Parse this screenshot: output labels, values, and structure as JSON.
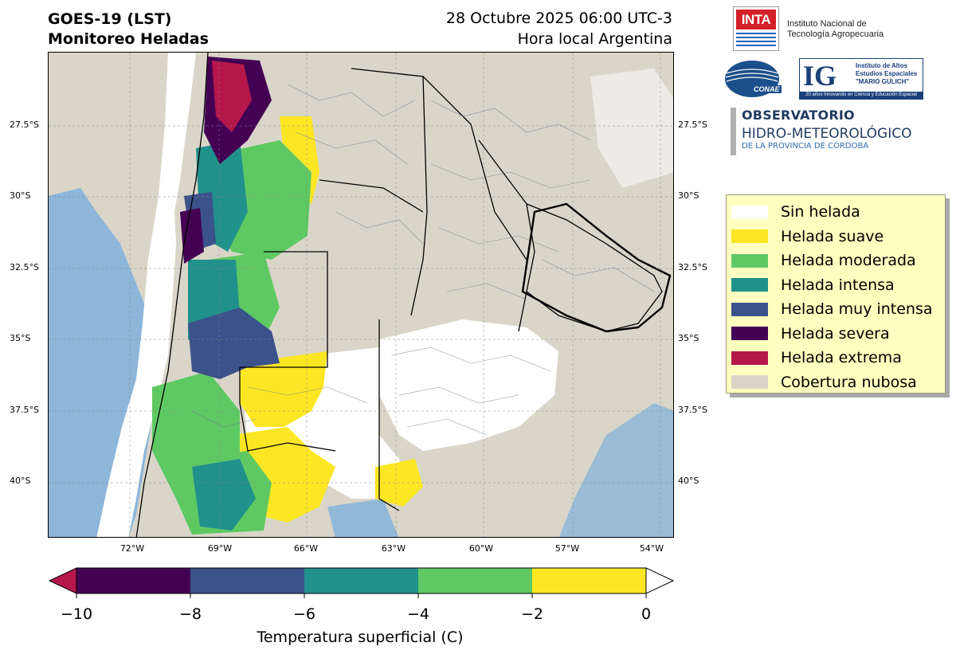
{
  "header": {
    "title_line1": "GOES-19 (LST)",
    "title_line2": "Monitoreo Heladas",
    "datetime": "28 Octubre 2025 06:00 UTC-3",
    "local_note": "Hora local Argentina"
  },
  "logos": {
    "inta": {
      "mark": "INTA",
      "line1": "Instituto Nacional de",
      "line2": "Tecnología Agropecuaria"
    },
    "conae": {
      "mark": "CONAE"
    },
    "ig": {
      "mark": "IG",
      "line1": "Instituto de Altos",
      "line2": "Estudios Espaciales",
      "line3": "\"MARIO GULICH\"",
      "band": "20 años Innovando en Ciencia y Educación Espacial"
    },
    "observatorio": {
      "line1": "OBSERVATORIO",
      "line2": "HIDRO-METEOROLÓGICO",
      "line3": "DE LA PROVINCIA DE CÓRDOBA"
    }
  },
  "map": {
    "lat_labels": [
      "27.5°S",
      "30°S",
      "32.5°S",
      "35°S",
      "37.5°S",
      "40°S"
    ],
    "lon_labels": [
      "72°W",
      "69°W",
      "66°W",
      "63°W",
      "60°W",
      "57°W",
      "54°W"
    ],
    "colors": {
      "land": "#d9d6c9",
      "cloud": "#d9d6c9",
      "ocean": "#7fb0dc",
      "boundary": "#6f7f92"
    }
  },
  "legend": {
    "items": [
      {
        "label": "Sin helada",
        "color": "#ffffff"
      },
      {
        "label": "Helada suave",
        "color": "#fde725"
      },
      {
        "label": "Helada moderada",
        "color": "#5ec962"
      },
      {
        "label": "Helada intensa",
        "color": "#21918c"
      },
      {
        "label": "Helada muy intensa",
        "color": "#3b528b"
      },
      {
        "label": "Helada severa",
        "color": "#440154"
      },
      {
        "label": "Helada extrema",
        "color": "#b5174b"
      },
      {
        "label": "Cobertura nubosa",
        "color": "#d9d6c9"
      }
    ]
  },
  "colorbar": {
    "title": "Temperatura superficial (C)",
    "ticks": [
      "−10",
      "−8",
      "−6",
      "−4",
      "−2",
      "0"
    ],
    "segments": [
      "#440154",
      "#3b528b",
      "#21918c",
      "#5ec962",
      "#fde725"
    ],
    "under_color": "#b5174b",
    "over_color": "#ffffff"
  }
}
